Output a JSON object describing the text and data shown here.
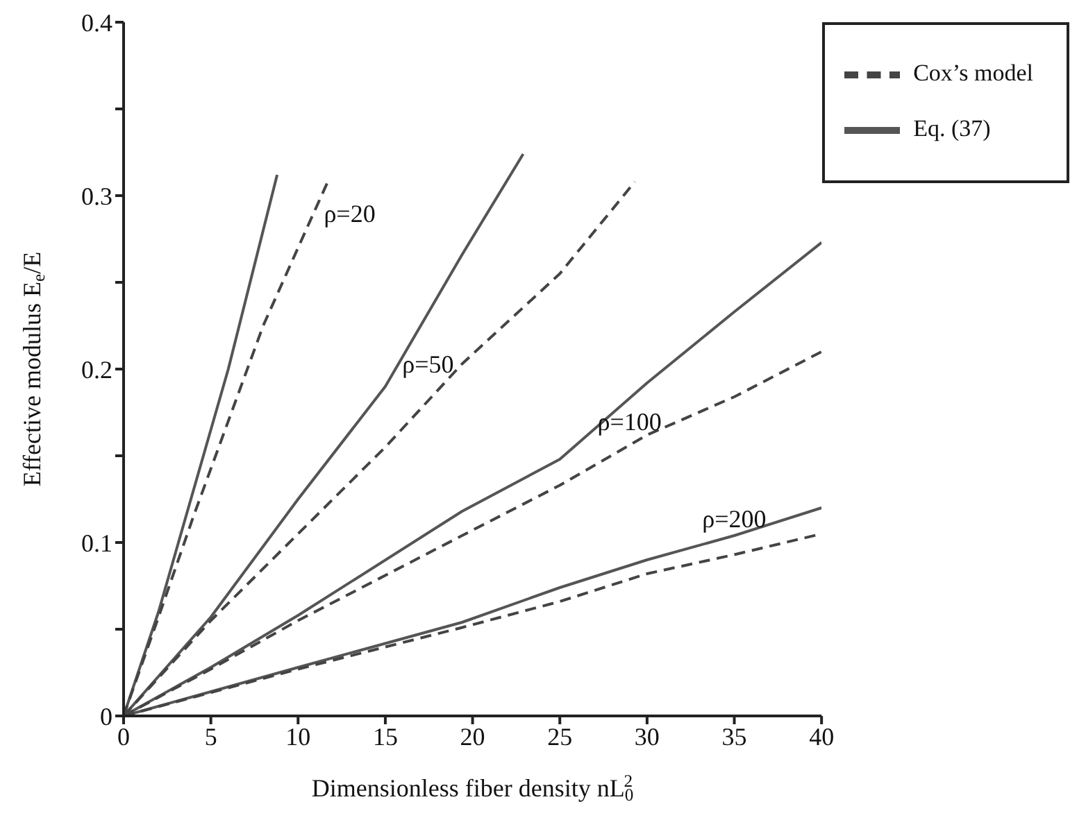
{
  "chart_data": {
    "type": "line",
    "xlabel": "Dimensionless fiber density nL$_{0}$$^{2}$",
    "ylabel": "Effective modulus E$_{e}$/E",
    "xlim": [
      0,
      40
    ],
    "xticks": [
      0,
      5,
      10,
      15,
      20,
      25,
      30,
      35,
      40
    ],
    "ylim": [
      0,
      0.4
    ],
    "yticks": [
      0,
      {
        "value": 0.05,
        "label": null
      },
      0.1,
      {
        "value": 0.15,
        "label": null
      },
      0.2,
      {
        "value": 0.25,
        "label": null
      },
      0.3,
      {
        "value": 0.35,
        "label": null
      },
      0.4
    ],
    "grid": false,
    "legend": "top right",
    "marker": "none",
    "series": [
      {
        "name": "Eq. (37)",
        "color": "#555555",
        "line_style": "solid",
        "x": [
          0,
          2,
          4,
          6,
          8,
          8.8
        ],
        "values": [
          0,
          0.06,
          0.13,
          0.2,
          0.28,
          0.312
        ]
      },
      {
        "name": "Cox’s model",
        "color": "#444444",
        "line_style": "dashed",
        "x": [
          0,
          2,
          4,
          6,
          8,
          10,
          11.7
        ],
        "values": [
          0,
          0.057,
          0.115,
          0.17,
          0.225,
          0.27,
          0.308
        ]
      },
      {
        "color": "#555555",
        "line_style": "solid",
        "x": [
          0,
          5,
          10,
          15,
          19.4,
          22.9
        ],
        "values": [
          0,
          0.057,
          0.125,
          0.19,
          0.266,
          0.324
        ]
      },
      {
        "color": "#444444",
        "line_style": "dashed",
        "x": [
          0,
          5,
          10,
          15,
          19.4,
          25,
          29.3
        ],
        "values": [
          0,
          0.055,
          0.105,
          0.155,
          0.203,
          0.255,
          0.308
        ]
      },
      {
        "color": "#555555",
        "line_style": "solid",
        "x": [
          0,
          5,
          10,
          19.4,
          25,
          30,
          35,
          40
        ],
        "values": [
          0,
          0.028,
          0.058,
          0.118,
          0.148,
          0.192,
          0.233,
          0.273
        ]
      },
      {
        "color": "#444444",
        "line_style": "dashed",
        "x": [
          0,
          5,
          10,
          19.4,
          25,
          30,
          35,
          40
        ],
        "values": [
          0,
          0.027,
          0.055,
          0.104,
          0.133,
          0.162,
          0.184,
          0.21
        ]
      },
      {
        "color": "#555555",
        "line_style": "solid",
        "x": [
          0,
          10,
          19.4,
          25,
          30,
          35,
          40
        ],
        "values": [
          0,
          0.028,
          0.054,
          0.074,
          0.09,
          0.104,
          0.12
        ]
      },
      {
        "color": "#444444",
        "line_style": "dashed",
        "x": [
          0,
          10,
          19.4,
          25,
          30,
          35,
          40
        ],
        "values": [
          0,
          0.027,
          0.051,
          0.066,
          0.082,
          0.093,
          0.105
        ]
      }
    ],
    "annotations": [
      {
        "text": "ρ=20",
        "x": 11,
        "y": 0.29
      },
      {
        "text": "ρ=50",
        "x": 19.4,
        "y": 0.203
      },
      {
        "text": "ρ=100",
        "x": 29,
        "y": 0.16
      },
      {
        "text": "ρ=200",
        "x": 35,
        "y": 0.104
      }
    ]
  }
}
